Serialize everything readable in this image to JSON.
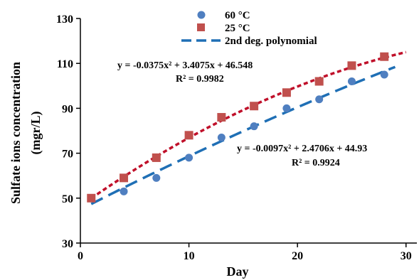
{
  "chart_data": {
    "type": "scatter",
    "xlabel": "Day",
    "ylabel_line1": "Sulfate ions concentration",
    "ylabel_line2": "(mgr/L)",
    "xlim": [
      0,
      31
    ],
    "ylim": [
      30,
      130
    ],
    "x_ticks": [
      0,
      10,
      20,
      30
    ],
    "y_ticks": [
      30,
      50,
      70,
      90,
      110,
      130
    ],
    "grid": false,
    "legend_position": "top-center",
    "series": [
      {
        "name": "60 °C",
        "marker": "circle",
        "color": "#4f7fc0",
        "x": [
          4,
          7,
          10,
          13,
          16,
          19,
          22,
          25,
          28
        ],
        "y": [
          53,
          59,
          68,
          77,
          82,
          90,
          94,
          102,
          105
        ]
      },
      {
        "name": "25 °C",
        "marker": "square",
        "color": "#c0504d",
        "x": [
          1,
          4,
          7,
          10,
          13,
          16,
          19,
          22,
          25,
          28
        ],
        "y": [
          50,
          59,
          68,
          78,
          86,
          91,
          97,
          102,
          109,
          113
        ]
      }
    ],
    "trendlines": [
      {
        "legend": "2nd deg. polynomial",
        "for_series": "60 °C",
        "color": "#1f6fb5",
        "style": "long-dash",
        "coefficients": {
          "a": -0.0097,
          "b": 2.4706,
          "c": 44.93
        },
        "x_range": [
          1,
          29
        ],
        "equation": "y = -0.0097x² + 2.4706x + 44.93",
        "r2": "R² = 0.9924"
      },
      {
        "for_series": "25 °C",
        "color": "#c0102a",
        "style": "short-dash",
        "coefficients": {
          "a": -0.0375,
          "b": 3.4075,
          "c": 46.548
        },
        "x_range": [
          1,
          30
        ],
        "equation": "y = -0.0375x² + 3.4075x + 46.548",
        "r2": "R² = 0.9982"
      }
    ]
  }
}
